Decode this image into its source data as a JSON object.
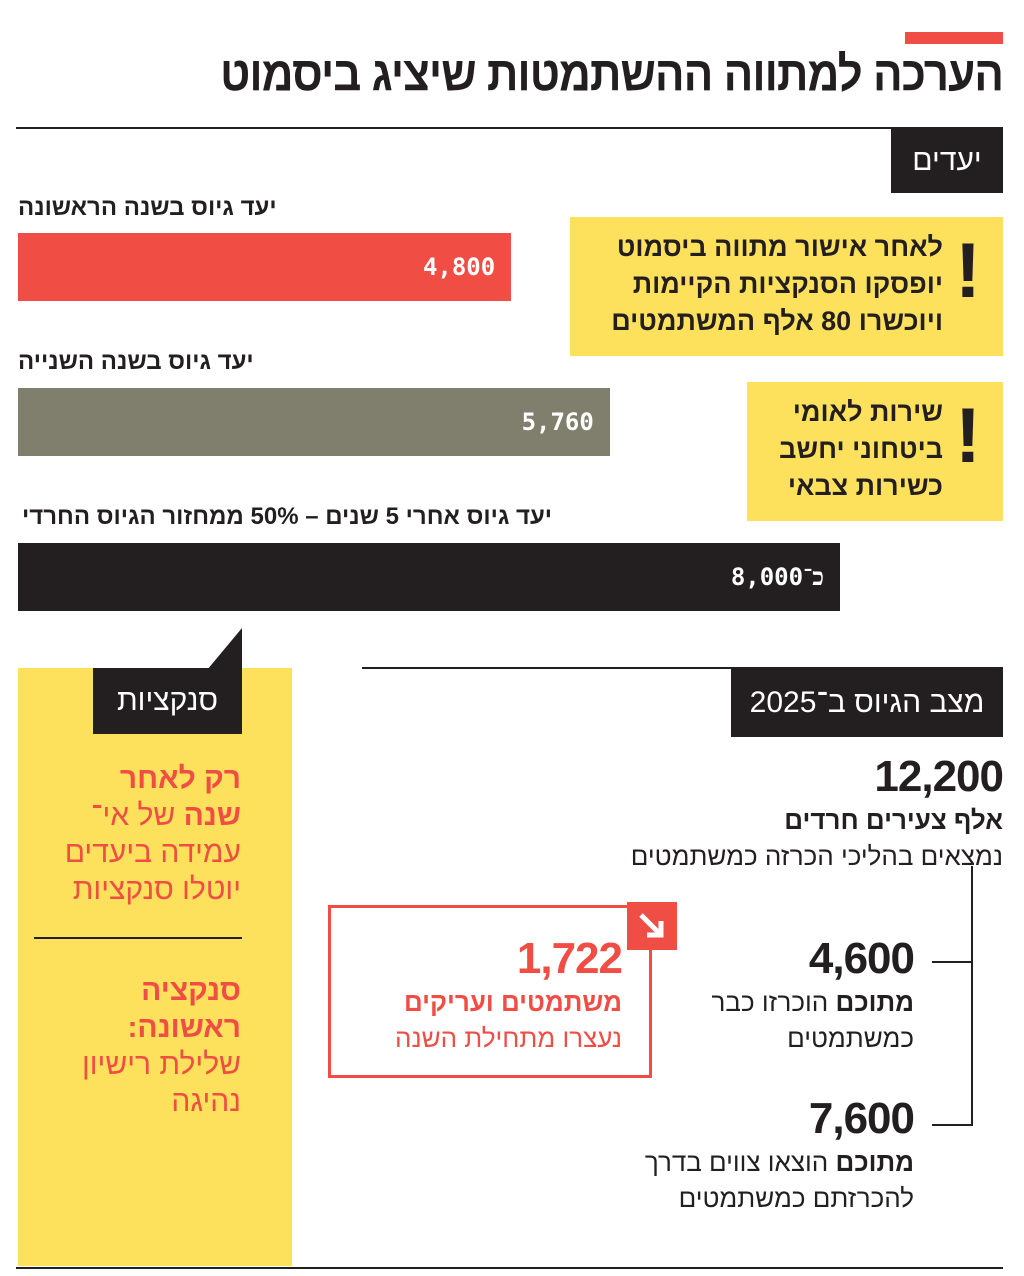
{
  "header": {
    "title": "הערכה למתווה ההשתמטות שיציג ביסמוט"
  },
  "goals": {
    "tag": "יעדים",
    "notes": [
      {
        "lines": [
          "לאחר אישור מתווה ביסמוט",
          "יופסקו הסנקציות הקיימות",
          "ויוכשרו 80 אלף המשתמטים"
        ],
        "icon": "exclamation-icon",
        "mark": "!"
      },
      {
        "lines": [
          "שירות לאומי",
          "ביטחוני יחשב",
          "כשירות צבאי"
        ],
        "icon": "exclamation-icon",
        "mark": "!"
      }
    ]
  },
  "chart_data": {
    "type": "bar",
    "orientation": "horizontal",
    "categories": [
      "יעד גיוס בשנה הראשונה",
      "יעד גיוס בשנה השנייה",
      "יעד גיוס אחרי 5 שנים – 50% ממחזור הגיוס החרדי"
    ],
    "values": [
      4800,
      5760,
      8000
    ],
    "value_labels": [
      "4,800",
      "5,760",
      "כ־8,000"
    ],
    "colors": [
      "#f04e45",
      "#807f6e",
      "#231f20"
    ],
    "xlim": [
      0,
      8000
    ],
    "title": "יעדים"
  },
  "sanctions": {
    "tag": "סנקציות",
    "block1": {
      "bold1": "רק לאחר",
      "bold2": "שנה",
      "rest1": " של אי־",
      "rest2": "עמידה ביעדים",
      "rest3": "יוטלו סנקציות"
    },
    "block2": {
      "bold1": "סנקציה",
      "bold2": "ראשונה:",
      "rest1": "שלילת רישיון",
      "rest2": "נהיגה"
    }
  },
  "status": {
    "tag": "מצב הגיוס ב־2025",
    "total": {
      "value": "12,200",
      "bold": "אלף צעירים חרדים",
      "desc": "נמצאים בהליכי הכרזה כמשתמטים"
    },
    "declared": {
      "value": "4,600",
      "bold": "מתוכם",
      "desc1": " הוכרזו כבר",
      "desc2": "כמשתמטים"
    },
    "orders": {
      "value": "7,600",
      "bold": "מתוכם",
      "desc1": " הוצאו צווים בדרך",
      "desc2": "להכרזתם כמשתמטים"
    },
    "arrested": {
      "value": "1,722",
      "bold": "משתמטים ועריקים",
      "desc": "נעצרו מתחילת השנה",
      "icon": "arrow-down-right-icon"
    }
  },
  "colors": {
    "accent": "#f04e45",
    "yellow": "#fde05c",
    "dark": "#231f20",
    "gray": "#807f6e"
  }
}
